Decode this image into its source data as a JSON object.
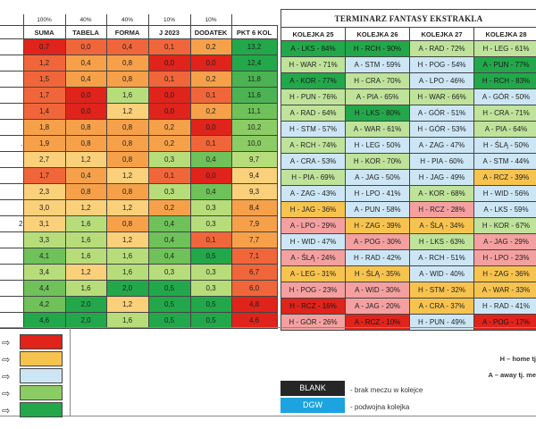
{
  "colors": {
    "dark_red": "#e0231b",
    "red_orange": "#f0663a",
    "orange": "#f6a14a",
    "light_orange": "#fbd07a",
    "light_green": "#b7dd7b",
    "mid_green": "#6fc15a",
    "green": "#22a84a",
    "sched_red": "#f4a0a0",
    "sched_yellow": "#f7c34f",
    "sched_blue": "#cde6f5",
    "sched_lgreen": "#bfe39a",
    "sched_green": "#22a84a",
    "blank": "#262626",
    "dgw": "#1da3e0"
  },
  "weights": [
    "100%",
    "40%",
    "40%",
    "10%",
    "10%"
  ],
  "left_headers": [
    "SUMA",
    "TABELA",
    "FORMA",
    "J 2023",
    "DODATEK",
    "PKT 6 KOL"
  ],
  "left_rows": [
    {
      "lead": "",
      "cells": [
        [
          "0,7",
          "#e0231b"
        ],
        [
          "0,0",
          "#f0663a"
        ],
        [
          "0,4",
          "#f0663a"
        ],
        [
          "0,1",
          "#f0663a"
        ],
        [
          "0,2",
          "#f6a14a"
        ],
        [
          "13,2",
          "#22a84a"
        ]
      ]
    },
    {
      "lead": "",
      "cells": [
        [
          "1,2",
          "#f0663a"
        ],
        [
          "0,4",
          "#f6a14a"
        ],
        [
          "0,8",
          "#f6a14a"
        ],
        [
          "0,0",
          "#e0231b"
        ],
        [
          "0,0",
          "#e0231b"
        ],
        [
          "12,4",
          "#22a84a"
        ]
      ]
    },
    {
      "lead": "",
      "cells": [
        [
          "1,5",
          "#f0663a"
        ],
        [
          "0,4",
          "#f6a14a"
        ],
        [
          "0,8",
          "#f6a14a"
        ],
        [
          "0,1",
          "#f0663a"
        ],
        [
          "0,2",
          "#f6a14a"
        ],
        [
          "11,8",
          "#4bb352"
        ]
      ]
    },
    {
      "lead": "",
      "cells": [
        [
          "1,7",
          "#f0663a"
        ],
        [
          "0,0",
          "#e0231b"
        ],
        [
          "1,6",
          "#b7dd7b"
        ],
        [
          "0,0",
          "#e0231b"
        ],
        [
          "0,1",
          "#f0663a"
        ],
        [
          "11,6",
          "#4bb352"
        ]
      ]
    },
    {
      "lead": "",
      "cells": [
        [
          "1,4",
          "#f0663a"
        ],
        [
          "0,0",
          "#e0231b"
        ],
        [
          "1,2",
          "#fbd07a"
        ],
        [
          "0,0",
          "#e0231b"
        ],
        [
          "0,2",
          "#f6a14a"
        ],
        [
          "11,1",
          "#6fc15a"
        ]
      ]
    },
    {
      "lead": "",
      "cells": [
        [
          "1,8",
          "#f6a14a"
        ],
        [
          "0,8",
          "#f6a14a"
        ],
        [
          "0,8",
          "#f6a14a"
        ],
        [
          "0,2",
          "#f6a14a"
        ],
        [
          "0,0",
          "#e0231b"
        ],
        [
          "10,2",
          "#8ccc65"
        ]
      ]
    },
    {
      "lead": ".",
      "cells": [
        [
          "1,9",
          "#f6a14a"
        ],
        [
          "0,8",
          "#f6a14a"
        ],
        [
          "0,8",
          "#f6a14a"
        ],
        [
          "0,2",
          "#f6a14a"
        ],
        [
          "0,1",
          "#f0663a"
        ],
        [
          "10,0",
          "#8ccc65"
        ]
      ]
    },
    {
      "lead": "",
      "cells": [
        [
          "2,7",
          "#fbd07a"
        ],
        [
          "1,2",
          "#fbd07a"
        ],
        [
          "0,8",
          "#f6a14a"
        ],
        [
          "0,3",
          "#b7dd7b"
        ],
        [
          "0,4",
          "#6fc15a"
        ],
        [
          "9,7",
          "#b7dd7b"
        ]
      ]
    },
    {
      "lead": "",
      "cells": [
        [
          "1,7",
          "#f0663a"
        ],
        [
          "0,4",
          "#f6a14a"
        ],
        [
          "1,2",
          "#fbd07a"
        ],
        [
          "0,1",
          "#f0663a"
        ],
        [
          "0,0",
          "#e0231b"
        ],
        [
          "9,4",
          "#fbd07a"
        ]
      ]
    },
    {
      "lead": "",
      "cells": [
        [
          "2,3",
          "#fbd07a"
        ],
        [
          "0,8",
          "#f6a14a"
        ],
        [
          "0,8",
          "#f6a14a"
        ],
        [
          "0,3",
          "#b7dd7b"
        ],
        [
          "0,4",
          "#6fc15a"
        ],
        [
          "9,3",
          "#fbd07a"
        ]
      ]
    },
    {
      "lead": "",
      "cells": [
        [
          "3,0",
          "#fbd07a"
        ],
        [
          "1,2",
          "#fbd07a"
        ],
        [
          "1,2",
          "#fbd07a"
        ],
        [
          "0,2",
          "#f6a14a"
        ],
        [
          "0,3",
          "#b7dd7b"
        ],
        [
          "8,4",
          "#f6a14a"
        ]
      ]
    },
    {
      "lead": "2",
      "cells": [
        [
          "3,1",
          "#fbd07a"
        ],
        [
          "1,6",
          "#b7dd7b"
        ],
        [
          "0,8",
          "#f6a14a"
        ],
        [
          "0,4",
          "#6fc15a"
        ],
        [
          "0,3",
          "#b7dd7b"
        ],
        [
          "7,9",
          "#f6a14a"
        ]
      ]
    },
    {
      "lead": "",
      "cells": [
        [
          "3,3",
          "#b7dd7b"
        ],
        [
          "1,6",
          "#b7dd7b"
        ],
        [
          "1,2",
          "#fbd07a"
        ],
        [
          "0,4",
          "#6fc15a"
        ],
        [
          "0,1",
          "#f0663a"
        ],
        [
          "7,7",
          "#f6a14a"
        ]
      ]
    },
    {
      "lead": "",
      "cells": [
        [
          "4,1",
          "#6fc15a"
        ],
        [
          "1,6",
          "#b7dd7b"
        ],
        [
          "1,6",
          "#b7dd7b"
        ],
        [
          "0,4",
          "#6fc15a"
        ],
        [
          "0,5",
          "#22a84a"
        ],
        [
          "7,1",
          "#f0663a"
        ]
      ]
    },
    {
      "lead": "",
      "cells": [
        [
          "3,4",
          "#b7dd7b"
        ],
        [
          "1,2",
          "#fbd07a"
        ],
        [
          "1,6",
          "#b7dd7b"
        ],
        [
          "0,3",
          "#b7dd7b"
        ],
        [
          "0,3",
          "#b7dd7b"
        ],
        [
          "6,7",
          "#f0663a"
        ]
      ]
    },
    {
      "lead": "",
      "cells": [
        [
          "4,4",
          "#6fc15a"
        ],
        [
          "1,6",
          "#b7dd7b"
        ],
        [
          "2,0",
          "#22a84a"
        ],
        [
          "0,5",
          "#22a84a"
        ],
        [
          "0,3",
          "#b7dd7b"
        ],
        [
          "6,0",
          "#f0663a"
        ]
      ]
    },
    {
      "lead": "",
      "cells": [
        [
          "4,2",
          "#6fc15a"
        ],
        [
          "2,0",
          "#22a84a"
        ],
        [
          "1,2",
          "#fbd07a"
        ],
        [
          "0,5",
          "#22a84a"
        ],
        [
          "0,5",
          "#22a84a"
        ],
        [
          "4,8",
          "#e0231b"
        ]
      ]
    },
    {
      "lead": "",
      "cells": [
        [
          "4,6",
          "#22a84a"
        ],
        [
          "2,0",
          "#22a84a"
        ],
        [
          "1,6",
          "#b7dd7b"
        ],
        [
          "0,5",
          "#22a84a"
        ],
        [
          "0,5",
          "#22a84a"
        ],
        [
          "4,6",
          "#e0231b"
        ]
      ]
    }
  ],
  "schedule": {
    "title": "TERMINARZ FANTASY EKSTRAKLA",
    "headers": [
      "KOLEJKA 25",
      "KOLEJKA 26",
      "KOLEJKA 27",
      "KOLEJKA 28"
    ],
    "rows": [
      [
        [
          "A - LKS - 84%",
          "#22a84a"
        ],
        [
          "H - RCH - 90%",
          "#22a84a"
        ],
        [
          "A - RAD - 72%",
          "#bfe39a"
        ],
        [
          "H - LEG - 61%",
          "#bfe39a"
        ]
      ],
      [
        [
          "H - WAR - 71%",
          "#bfe39a"
        ],
        [
          "A - STM - 59%",
          "#cde6f5"
        ],
        [
          "H - POG - 54%",
          "#cde6f5"
        ],
        [
          "A - PUN - 77%",
          "#22a84a"
        ]
      ],
      [
        [
          "A - KOR - 77%",
          "#22a84a"
        ],
        [
          "H - CRA - 70%",
          "#bfe39a"
        ],
        [
          "A - LPO - 46%",
          "#cde6f5"
        ],
        [
          "H - RCH - 83%",
          "#22a84a"
        ]
      ],
      [
        [
          "H - PUN - 76%",
          "#bfe39a"
        ],
        [
          "A - PIA - 65%",
          "#bfe39a"
        ],
        [
          "H - WAR - 66%",
          "#bfe39a"
        ],
        [
          "A - GÓR - 50%",
          "#cde6f5"
        ]
      ],
      [
        [
          "A - RAD - 64%",
          "#bfe39a"
        ],
        [
          "H - LKS - 80%",
          "#22a84a"
        ],
        [
          "A - GÓR - 51%",
          "#cde6f5"
        ],
        [
          "H - CRA - 71%",
          "#bfe39a"
        ]
      ],
      [
        [
          "H - STM - 57%",
          "#cde6f5"
        ],
        [
          "A - WAR - 61%",
          "#bfe39a"
        ],
        [
          "H - GÓR - 53%",
          "#cde6f5"
        ],
        [
          "A - PIA - 64%",
          "#bfe39a"
        ]
      ],
      [
        [
          "A - RCH - 74%",
          "#bfe39a"
        ],
        [
          "H - LEG - 50%",
          "#cde6f5"
        ],
        [
          "A - ZAG - 47%",
          "#cde6f5"
        ],
        [
          "H - ŚLĄ - 50%",
          "#cde6f5"
        ]
      ],
      [
        [
          "A - CRA - 53%",
          "#cde6f5"
        ],
        [
          "H - KOR - 70%",
          "#bfe39a"
        ],
        [
          "H - PIA - 60%",
          "#cde6f5"
        ],
        [
          "A - STM - 44%",
          "#cde6f5"
        ]
      ],
      [
        [
          "H - PIA - 69%",
          "#bfe39a"
        ],
        [
          "A - JAG - 50%",
          "#cde6f5"
        ],
        [
          "H - JAG - 49%",
          "#cde6f5"
        ],
        [
          "A - RCZ - 39%",
          "#f7c34f"
        ]
      ],
      [
        [
          "A - ZAG - 43%",
          "#cde6f5"
        ],
        [
          "H - LPO - 41%",
          "#cde6f5"
        ],
        [
          "A - KOR - 68%",
          "#bfe39a"
        ],
        [
          "H - WID - 56%",
          "#cde6f5"
        ]
      ],
      [
        [
          "H - JAG - 36%",
          "#f7c34f"
        ],
        [
          "A - PUN - 58%",
          "#cde6f5"
        ],
        [
          "H - RCZ - 28%",
          "#f4a0a0"
        ],
        [
          "A - LKS - 59%",
          "#cde6f5"
        ]
      ],
      [
        [
          "A - LPO - 29%",
          "#f4a0a0"
        ],
        [
          "H - ZAG - 39%",
          "#f7c34f"
        ],
        [
          "A - ŚLĄ - 34%",
          "#f7c34f"
        ],
        [
          "H - KOR - 67%",
          "#bfe39a"
        ]
      ],
      [
        [
          "H - WID - 47%",
          "#cde6f5"
        ],
        [
          "A - POG - 30%",
          "#f4a0a0"
        ],
        [
          "H - LKS - 63%",
          "#bfe39a"
        ],
        [
          "A - JAG - 29%",
          "#f4a0a0"
        ]
      ],
      [
        [
          "A - ŚLĄ - 24%",
          "#f4a0a0"
        ],
        [
          "H - RAD - 42%",
          "#cde6f5"
        ],
        [
          "A - RCH - 51%",
          "#cde6f5"
        ],
        [
          "H - LPO - 23%",
          "#f4a0a0"
        ]
      ],
      [
        [
          "A - LEG - 31%",
          "#f7c34f"
        ],
        [
          "H - ŚLĄ - 35%",
          "#f7c34f"
        ],
        [
          "A - WID - 40%",
          "#cde6f5"
        ],
        [
          "H - ZAG - 36%",
          "#f7c34f"
        ]
      ],
      [
        [
          "H - POG - 23%",
          "#f4a0a0"
        ],
        [
          "A - WID - 30%",
          "#f4a0a0"
        ],
        [
          "H - STM - 32%",
          "#f7c34f"
        ],
        [
          "A - WAR - 33%",
          "#f7c34f"
        ]
      ],
      [
        [
          "H - RCZ - 16%",
          "#e0231b"
        ],
        [
          "A - JAG - 20%",
          "#f4a0a0"
        ],
        [
          "A - CRA - 37%",
          "#f7c34f"
        ],
        [
          "H - RAD - 41%",
          "#cde6f5"
        ]
      ],
      [
        [
          "H - GÓR - 26%",
          "#f4a0a0"
        ],
        [
          "A - RCZ - 10%",
          "#e0231b"
        ],
        [
          "H - PUN - 49%",
          "#cde6f5"
        ],
        [
          "A - POG - 17%",
          "#e0231b"
        ]
      ]
    ]
  },
  "legend": {
    "swatches": [
      "#e0231b",
      "#f7c34f",
      "#cde6f5",
      "#8ccc65",
      "#22a84a"
    ],
    "blank_label": "BLANK",
    "blank_note": "- brak meczu w kolejce",
    "dgw_label": "DGW",
    "dgw_note": "- podwojna kolejka",
    "home_note": "H – home tj",
    "away_note": "A – away tj. me"
  }
}
